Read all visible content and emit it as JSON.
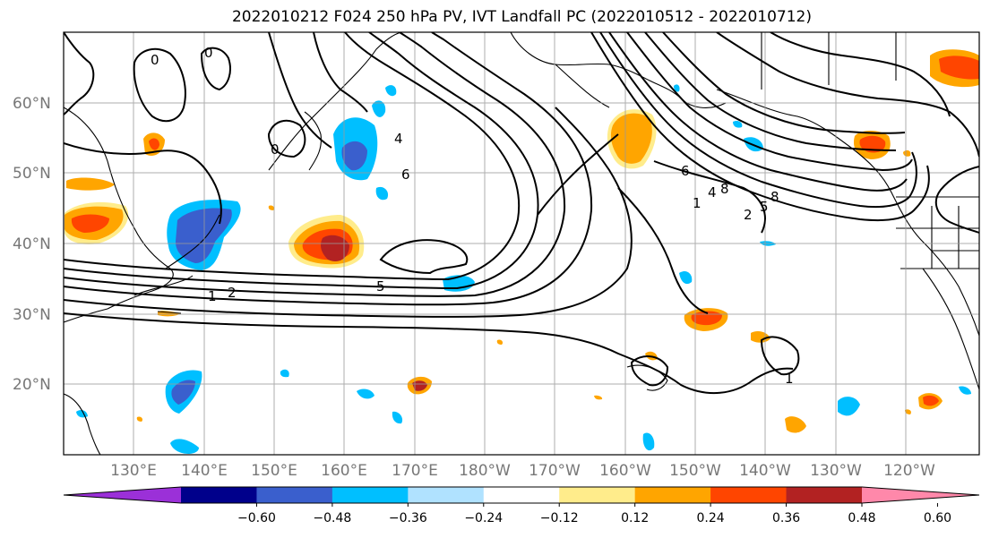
{
  "title": "2022010212 F024 250 hPa PV, IVT Landfall PC (2022010512 - 2022010712)",
  "latitude_labels": [
    "60°N",
    "50°N",
    "40°N",
    "30°N",
    "20°N"
  ],
  "longitude_labels": [
    "130°E",
    "140°E",
    "150°E",
    "160°E",
    "170°E",
    "180°W",
    "170°W",
    "160°W",
    "150°W",
    "140°W",
    "130°W",
    "120°W"
  ],
  "colorbar": {
    "tick_labels": [
      "−0.60",
      "−0.48",
      "−0.36",
      "−0.24",
      "−0.12",
      "0.12",
      "0.24",
      "0.36",
      "0.48",
      "0.60"
    ],
    "colors": [
      "#9b30d8",
      "#00008b",
      "#3a5fcd",
      "#00bfff",
      "#b0e2ff",
      "#ffffff",
      "#ffec8b",
      "#ffa500",
      "#ff4500",
      "#b22222",
      "#ff88aa"
    ]
  },
  "contour_labels": [
    "1",
    "2",
    "4",
    "5",
    "6",
    "8",
    "1",
    "2",
    "4",
    "5",
    "6",
    "8",
    "1",
    "0",
    "0",
    "0"
  ]
}
